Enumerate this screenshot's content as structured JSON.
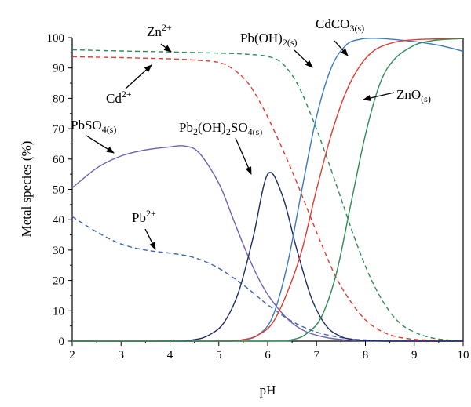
{
  "chart_data": {
    "type": "line",
    "title": "",
    "xlabel": "pH",
    "ylabel": "Metal species (%)",
    "xlim": [
      2,
      10
    ],
    "ylim": [
      0,
      100
    ],
    "xticks": [
      "2",
      "3",
      "4",
      "5",
      "6",
      "7",
      "8",
      "9",
      "10"
    ],
    "yticks": [
      "0",
      "10",
      "20",
      "30",
      "40",
      "50",
      "60",
      "70",
      "80",
      "90",
      "100"
    ],
    "grid": false,
    "legend": "none",
    "series": [
      {
        "name": "Zn2+",
        "color": "#2e8b57",
        "dash": "dashed",
        "x": [
          2,
          3,
          4,
          5,
          5.5,
          6,
          6.3,
          6.6,
          6.9,
          7.2,
          7.5,
          7.8,
          8.1,
          8.4,
          8.7,
          9,
          9.3,
          9.6,
          10
        ],
        "y": [
          96,
          95.6,
          95.3,
          94.9,
          94.6,
          93.8,
          91.5,
          85,
          74,
          61,
          47,
          33,
          21,
          12,
          6,
          3,
          1.3,
          0.5,
          0.1
        ]
      },
      {
        "name": "Cd2+",
        "color": "#e03c32",
        "dash": "dashed",
        "x": [
          2,
          3,
          4,
          4.5,
          5,
          5.3,
          5.6,
          5.9,
          6.2,
          6.5,
          6.8,
          7.1,
          7.4,
          7.7,
          8,
          8.3,
          8.6,
          9,
          9.5,
          10
        ],
        "y": [
          93.7,
          93.4,
          93,
          92.6,
          91.8,
          89.5,
          85,
          77,
          67,
          56,
          44,
          32,
          21,
          13,
          7,
          3.5,
          1.6,
          0.6,
          0.2,
          0
        ]
      },
      {
        "name": "Pb2+",
        "color": "#3d63b8",
        "dash": "dashed",
        "x": [
          2,
          2.5,
          3,
          3.5,
          4,
          4.5,
          5,
          5.5,
          6,
          6.5,
          7,
          7.5,
          8,
          9,
          10
        ],
        "y": [
          41,
          36,
          32,
          30,
          29,
          27.5,
          24,
          18.5,
          12,
          6.5,
          3,
          1.2,
          0.4,
          0,
          0
        ]
      },
      {
        "name": "PbSO4(s)",
        "color": "#6e5fb5",
        "dash": "solid",
        "x": [
          2,
          2.5,
          3,
          3.5,
          4,
          4.3,
          4.6,
          5,
          5.3,
          5.6,
          5.9,
          6.2,
          6.5,
          6.8,
          7.2,
          7.6,
          8,
          9,
          10
        ],
        "y": [
          50.5,
          57,
          61,
          63,
          64,
          64.3,
          62,
          52,
          40,
          28,
          18,
          11,
          6,
          3,
          1.2,
          0.4,
          0.1,
          0,
          0
        ]
      },
      {
        "name": "Pb2(OH)2SO4(s)",
        "color": "#1e2a63",
        "dash": "solid",
        "x": [
          2,
          4,
          4.5,
          4.8,
          5.1,
          5.4,
          5.7,
          6,
          6.3,
          6.6,
          6.9,
          7.2,
          7.5,
          7.8,
          8.1,
          8.4,
          9,
          10
        ],
        "y": [
          0,
          0,
          0.5,
          2,
          6,
          16,
          34,
          55,
          48,
          30,
          14,
          5,
          1.5,
          0.4,
          0.1,
          0,
          0,
          0
        ]
      },
      {
        "name": "Pb(OH)2(s)",
        "color": "#3a7bc0",
        "dash": "solid",
        "x": [
          2,
          5,
          5.5,
          5.8,
          6.1,
          6.4,
          6.7,
          7,
          7.3,
          7.6,
          7.9,
          8.2,
          8.5,
          9,
          9.5,
          10
        ],
        "y": [
          0,
          0,
          0.5,
          2,
          8,
          25,
          50,
          74,
          90,
          97.5,
          99.5,
          99.8,
          99.5,
          98.7,
          97.5,
          95.5
        ]
      },
      {
        "name": "CdCO3(s)",
        "color": "#e03c32",
        "dash": "solid",
        "x": [
          2,
          5,
          5.5,
          5.8,
          6.1,
          6.4,
          6.7,
          7,
          7.3,
          7.6,
          7.9,
          8.2,
          8.6,
          9,
          9.5,
          10
        ],
        "y": [
          0,
          0,
          0.5,
          2,
          6,
          16,
          30,
          50,
          68,
          82,
          91,
          96,
          98.5,
          99.3,
          99.6,
          99.8
        ]
      },
      {
        "name": "ZnO(s)",
        "color": "#2e8b57",
        "dash": "solid",
        "x": [
          2,
          6,
          6.5,
          6.8,
          7.1,
          7.4,
          7.7,
          8,
          8.3,
          8.6,
          9,
          9.3,
          9.6,
          10
        ],
        "y": [
          0,
          0,
          0.5,
          2.5,
          8,
          22,
          45,
          68,
          85,
          93,
          97.5,
          98.8,
          99.4,
          99.7
        ]
      }
    ],
    "annotations": [
      {
        "label": "Zn",
        "sup": "2+",
        "sub": ""
      },
      {
        "label": "Cd",
        "sup": "2+",
        "sub": ""
      },
      {
        "label": "Pb",
        "sup": "2+",
        "sub": ""
      },
      {
        "label": "PbSO",
        "sub": "4(s)",
        "sup": ""
      },
      {
        "label": "Pb(OH)",
        "sub": "2(s)",
        "sup": ""
      },
      {
        "label": "CdCO",
        "sub": "3(s)",
        "sup": ""
      },
      {
        "label": "ZnO",
        "sub": "(s)",
        "sup": ""
      },
      {
        "label": "Pb",
        "sub": "2",
        "label2": "(OH)",
        "sub2": "2",
        "label3": "SO",
        "sub3": "4(s)",
        "sup": ""
      }
    ]
  }
}
